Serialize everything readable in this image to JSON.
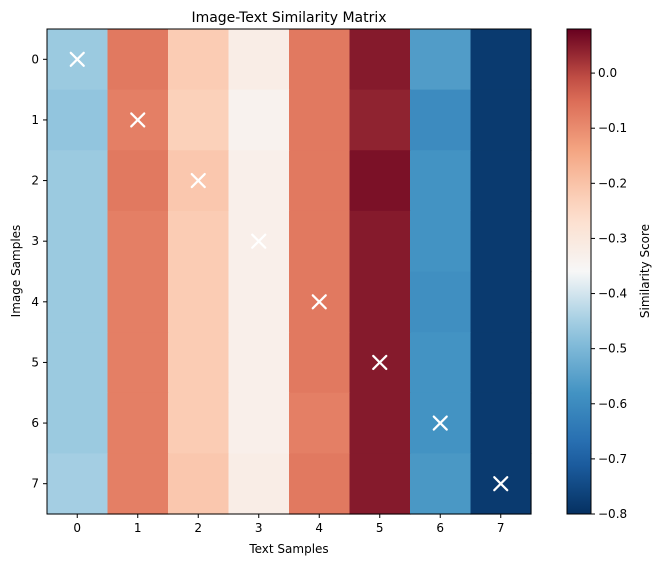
{
  "chart_data": {
    "type": "heatmap",
    "title": "Image-Text Similarity Matrix",
    "xlabel": "Text Samples",
    "ylabel": "Image Samples",
    "x_categories": [
      "0",
      "1",
      "2",
      "3",
      "4",
      "5",
      "6",
      "7"
    ],
    "y_categories": [
      "0",
      "1",
      "2",
      "3",
      "4",
      "5",
      "6",
      "7"
    ],
    "values": [
      [
        -0.46,
        -0.07,
        -0.22,
        -0.32,
        -0.07,
        0.05,
        -0.56,
        -0.78
      ],
      [
        -0.47,
        -0.08,
        -0.23,
        -0.34,
        -0.07,
        0.04,
        -0.6,
        -0.78
      ],
      [
        -0.46,
        -0.07,
        -0.21,
        -0.33,
        -0.07,
        0.06,
        -0.58,
        -0.78
      ],
      [
        -0.46,
        -0.08,
        -0.22,
        -0.33,
        -0.07,
        0.05,
        -0.58,
        -0.78
      ],
      [
        -0.46,
        -0.08,
        -0.22,
        -0.33,
        -0.07,
        0.05,
        -0.59,
        -0.78
      ],
      [
        -0.46,
        -0.08,
        -0.22,
        -0.33,
        -0.07,
        0.05,
        -0.58,
        -0.78
      ],
      [
        -0.46,
        -0.08,
        -0.22,
        -0.33,
        -0.08,
        0.05,
        -0.58,
        -0.78
      ],
      [
        -0.45,
        -0.08,
        -0.21,
        -0.32,
        -0.07,
        0.05,
        -0.57,
        -0.78
      ]
    ],
    "markers": [
      [
        0,
        0
      ],
      [
        1,
        1
      ],
      [
        2,
        2
      ],
      [
        3,
        3
      ],
      [
        4,
        4
      ],
      [
        5,
        5
      ],
      [
        6,
        6
      ],
      [
        7,
        7
      ]
    ],
    "marker_symbol": "x",
    "marker_color": "#ffffff",
    "colormap": "RdBu_r",
    "color_range": [
      -0.8,
      0.08
    ],
    "colorbar": {
      "label": "Similarity Score",
      "ticks": [
        0.0,
        -0.1,
        -0.2,
        -0.3,
        -0.4,
        -0.5,
        -0.6,
        -0.7,
        -0.8
      ],
      "tick_labels": [
        "0.0",
        "−0.1",
        "−0.2",
        "−0.3",
        "−0.4",
        "−0.5",
        "−0.6",
        "−0.7",
        "−0.8"
      ]
    }
  }
}
